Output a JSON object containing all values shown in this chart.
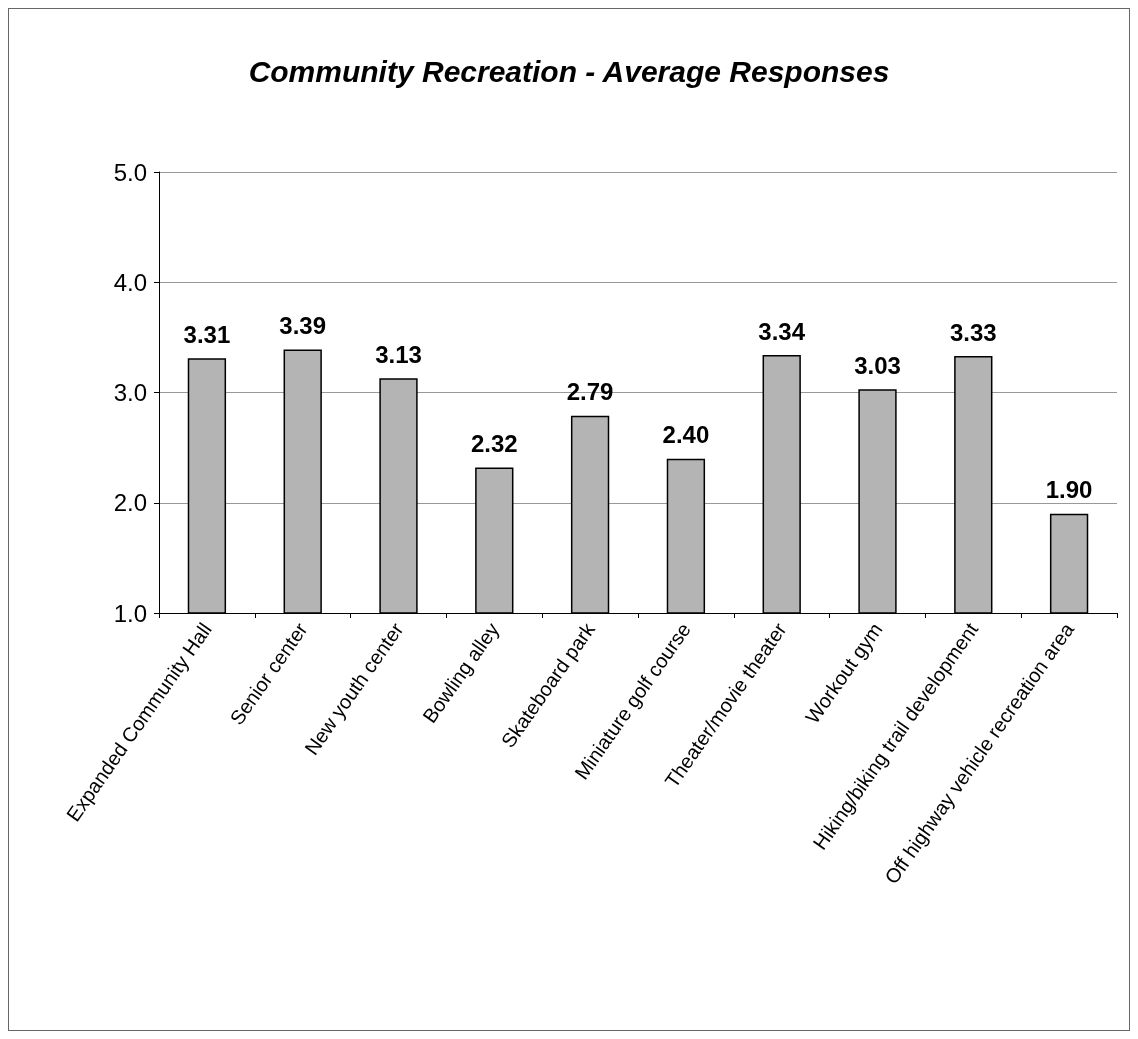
{
  "chart_data": {
    "type": "bar",
    "title": "Community Recreation - Average Responses",
    "categories": [
      "Expanded Community Hall",
      "Senior center",
      "New youth center",
      "Bowling alley",
      "Skateboard park",
      "Miniature golf course",
      "Theater/movie theater",
      "Workout gym",
      "Hiking/biking trail development",
      "Off highway vehicle recreation area"
    ],
    "values": [
      3.31,
      3.39,
      3.13,
      2.32,
      2.79,
      2.4,
      3.34,
      3.03,
      3.33,
      1.9
    ],
    "value_labels": [
      "3.31",
      "3.39",
      "3.13",
      "2.32",
      "2.79",
      "2.40",
      "3.34",
      "3.03",
      "3.33",
      "1.90"
    ],
    "color": "#b4b4b4",
    "ylim": [
      1,
      5
    ],
    "yticks": [
      {
        "value": 1,
        "label": "1.0"
      },
      {
        "value": 2,
        "label": "2.0"
      },
      {
        "value": 3,
        "label": "3.0"
      },
      {
        "value": 4,
        "label": "4.0"
      },
      {
        "value": 5,
        "label": "5.0"
      }
    ],
    "grid": "y"
  }
}
